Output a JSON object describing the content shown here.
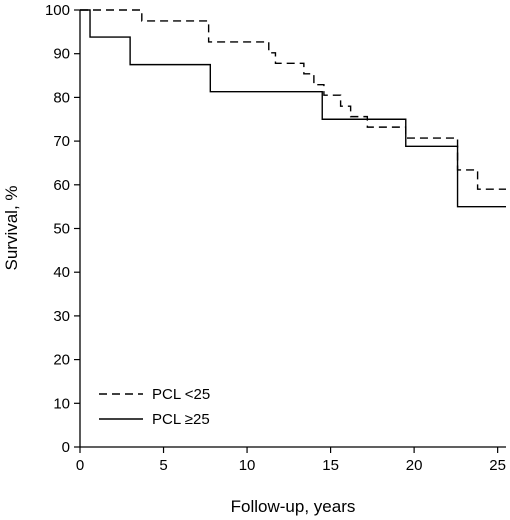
{
  "chart_data": {
    "type": "line",
    "step": true,
    "title": "",
    "xlabel": "Follow-up, years",
    "ylabel": "Survival, %",
    "xlim": [
      0,
      25.5
    ],
    "ylim": [
      0,
      100
    ],
    "xticks": [
      0,
      5,
      10,
      15,
      20,
      25
    ],
    "yticks": [
      0,
      10,
      20,
      30,
      40,
      50,
      60,
      70,
      80,
      90,
      100
    ],
    "grid": false,
    "legend_position": "bottom-left",
    "series": [
      {
        "name": "PCL <25",
        "line_style": "dashed",
        "color": "#000000",
        "x": [
          0,
          3.7,
          5.5,
          7.7,
          11.3,
          11.7,
          12.3,
          13.4,
          14.0,
          14.6,
          15.6,
          16.2,
          17.2,
          19.5,
          22.6,
          23.8,
          25.5
        ],
        "y": [
          100,
          97.5,
          97.5,
          92.7,
          90.2,
          87.8,
          87.8,
          85.4,
          82.9,
          80.5,
          78.0,
          75.6,
          73.2,
          70.7,
          63.4,
          59.0,
          59.0
        ]
      },
      {
        "name": "PCL ≥25",
        "line_style": "solid",
        "color": "#000000",
        "x": [
          0,
          0.6,
          3.0,
          7.8,
          14.5,
          19.5,
          22.6,
          25.5
        ],
        "y": [
          100,
          93.8,
          87.5,
          81.3,
          75.0,
          68.8,
          55.0,
          55.0
        ]
      }
    ]
  }
}
